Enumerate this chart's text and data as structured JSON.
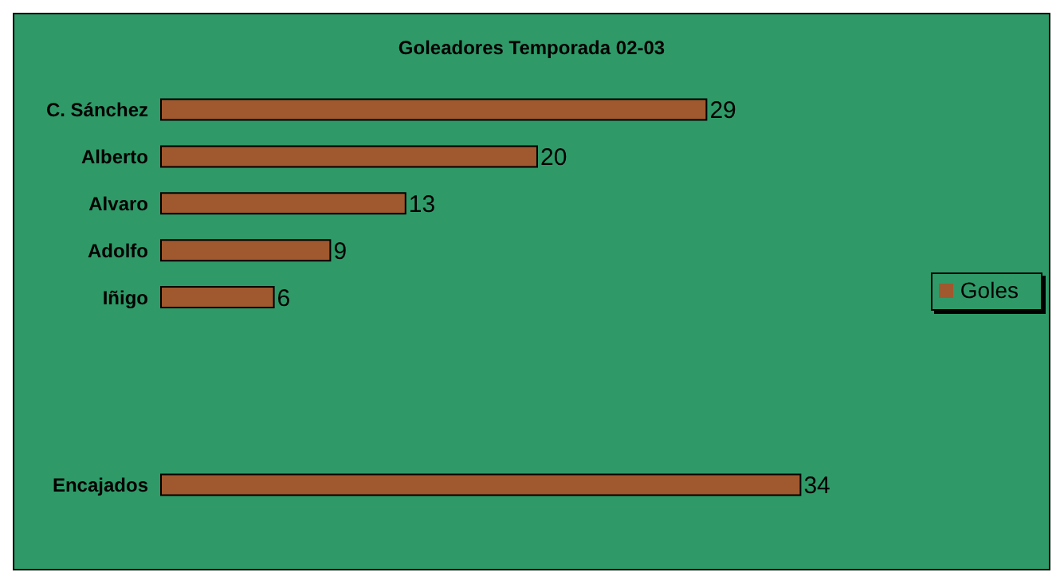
{
  "chart_data": {
    "type": "bar",
    "orientation": "horizontal",
    "title": "Goleadores  Temporada 02-03",
    "categories": [
      "C. Sánchez",
      "Alberto",
      "Alvaro",
      "Adolfo",
      "Iñigo",
      null,
      null,
      null,
      "Encajados"
    ],
    "series": [
      {
        "name": "Goles",
        "color": "#a0582e",
        "values": [
          29,
          20,
          13,
          9,
          6,
          null,
          null,
          null,
          34
        ]
      }
    ],
    "data_labels": true,
    "legend": "right"
  }
}
